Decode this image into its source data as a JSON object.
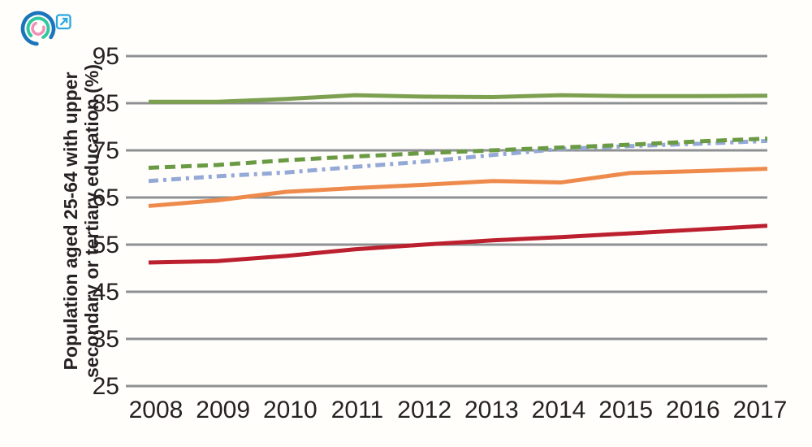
{
  "page": {
    "background_color": "#fffefb",
    "text_color": "#262223",
    "gridline_color": "#8e9093"
  },
  "logo": {
    "icon_name": "concentric-arcs-logo",
    "outer_arc_color": "#1b75bc",
    "middle_arc_color": "#2fc89f",
    "inner_arc_color": "#f190ba",
    "external_link_icon_color": "#29a8e0"
  },
  "chart_data": {
    "type": "line",
    "title": "",
    "xlabel": "",
    "ylabel": "Population aged 25-64 with upper secondary or tertiary education (%)",
    "ylabel_lines": [
      "Population aged 25-64 with upper",
      "secondary or tertiary education (%)"
    ],
    "x": [
      2008,
      2009,
      2010,
      2011,
      2012,
      2013,
      2014,
      2015,
      2016,
      2017
    ],
    "xtick_labels": [
      "2008",
      "2009",
      "2010",
      "2011",
      "2012",
      "2013",
      "2014",
      "2015",
      "2016",
      "2017"
    ],
    "yticks": [
      25,
      35,
      45,
      55,
      65,
      75,
      85,
      95
    ],
    "ylim": [
      25,
      95
    ],
    "grid": "horizontal-only",
    "legend_position": "none",
    "series": [
      {
        "name": "solid-green-line",
        "style": "solid",
        "color": "#7ca04f",
        "values": [
          85.3,
          85.3,
          85.9,
          86.7,
          86.4,
          86.3,
          86.7,
          86.5,
          86.5,
          86.6
        ]
      },
      {
        "name": "dashed-green-line",
        "style": "dashed",
        "color": "#6a9a43",
        "values": [
          71.3,
          71.9,
          72.9,
          73.7,
          74.4,
          75.0,
          75.6,
          76.2,
          76.9,
          77.5
        ]
      },
      {
        "name": "dash-dot-blue-line",
        "style": "dash-dot",
        "color": "#94a9d6",
        "values": [
          68.5,
          69.5,
          70.3,
          71.5,
          72.6,
          74.0,
          75.3,
          75.9,
          76.4,
          77.0
        ]
      },
      {
        "name": "solid-orange-line",
        "style": "solid",
        "color": "#ee8b4c",
        "values": [
          63.2,
          64.4,
          66.2,
          67.0,
          67.7,
          68.5,
          68.2,
          70.2,
          70.6,
          71.1
        ]
      },
      {
        "name": "solid-dark-red-line",
        "style": "solid",
        "color": "#bc1f2d",
        "values": [
          51.2,
          51.5,
          52.6,
          54.0,
          55.0,
          55.9,
          56.6,
          57.4,
          58.2,
          59.0
        ]
      }
    ]
  }
}
